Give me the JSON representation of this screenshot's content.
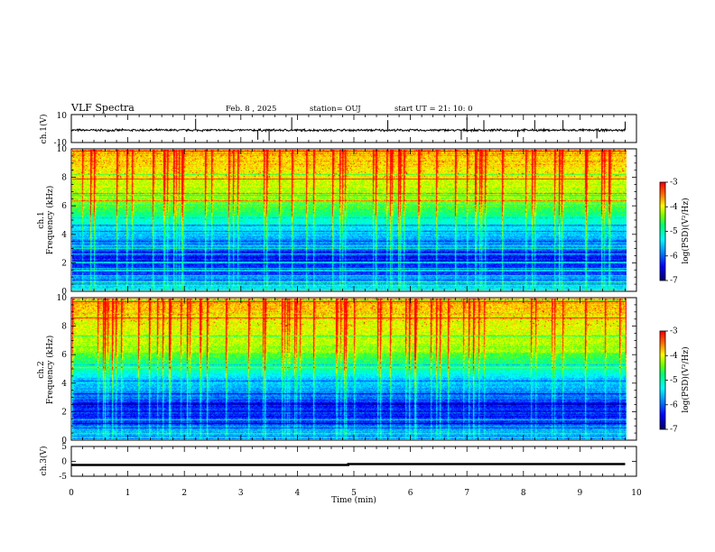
{
  "header": {
    "title": "VLF Spectra",
    "date": "Feb. 8  , 2025",
    "station": "station= OUJ",
    "start": "start  UT  =   21: 10: 0"
  },
  "chart_data": [
    {
      "type": "line",
      "name": "ch1-waveform",
      "ylabel": "ch.1(V)",
      "ylim": [
        -10,
        10
      ],
      "yticks": [
        "10",
        "-10"
      ],
      "xlim": [
        0,
        10
      ],
      "baseline": -1.2,
      "noise_amplitude": 0.6,
      "spikes": [
        {
          "x": 2.2,
          "y": 7
        },
        {
          "x": 3.3,
          "y": -8
        },
        {
          "x": 3.5,
          "y": -9
        },
        {
          "x": 3.9,
          "y": 8
        },
        {
          "x": 5.6,
          "y": 6
        },
        {
          "x": 6.9,
          "y": -8
        },
        {
          "x": 7.0,
          "y": 8
        },
        {
          "x": 7.3,
          "y": 6
        },
        {
          "x": 7.9,
          "y": -6
        },
        {
          "x": 8.2,
          "y": 6
        },
        {
          "x": 8.7,
          "y": 6
        },
        {
          "x": 9.3,
          "y": -7
        },
        {
          "x": 9.8,
          "y": 5
        }
      ]
    },
    {
      "type": "heatmap",
      "name": "ch1-spectrogram",
      "ylabel": "ch.1 Frequency (kHz)",
      "ylim": [
        0,
        10
      ],
      "yticks": [
        "0",
        "2",
        "4",
        "6",
        "8",
        "10"
      ],
      "xlim": [
        0,
        10
      ],
      "colorbar": {
        "label": "log(PSD)(V²/Hz)",
        "range": [
          -7,
          -3
        ],
        "ticks": [
          "-3",
          "-4",
          "-5",
          "-6",
          "-7"
        ]
      }
    },
    {
      "type": "heatmap",
      "name": "ch2-spectrogram",
      "ylabel": "ch.2 Frequency (kHz)",
      "ylim": [
        0,
        10
      ],
      "yticks": [
        "0",
        "2",
        "4",
        "6",
        "8",
        "10"
      ],
      "xlim": [
        0,
        10
      ],
      "colorbar": {
        "label": "log(PSD)(V²/Hz)",
        "range": [
          -7,
          -3
        ],
        "ticks": [
          "-3",
          "-4",
          "-5",
          "-6",
          "-7"
        ]
      }
    },
    {
      "type": "line",
      "name": "ch3-waveform",
      "ylabel": "ch.3(V)",
      "ylim": [
        -5,
        5
      ],
      "yticks": [
        "5",
        "0",
        "-5"
      ],
      "xlim": [
        0,
        10
      ],
      "series": [
        {
          "x": [
            0,
            4.9,
            4.9,
            9.8
          ],
          "y": [
            -1.2,
            -1.2,
            -0.9,
            -0.9
          ]
        }
      ]
    }
  ],
  "x_axis": {
    "label": "Time (min)",
    "ticks": [
      "0",
      "1",
      "2",
      "3",
      "4",
      "5",
      "6",
      "7",
      "8",
      "9",
      "10"
    ]
  }
}
